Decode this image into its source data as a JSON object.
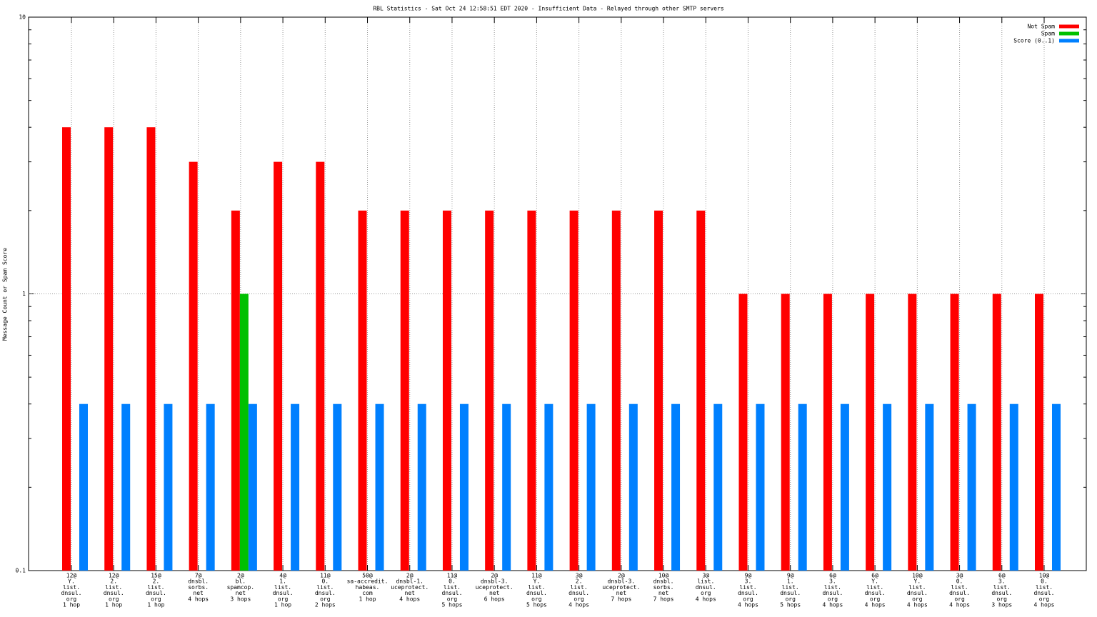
{
  "chart_data": {
    "type": "bar",
    "title": "RBL Statistics - Sat Oct 24 12:58:51 EDT 2020 - Insufficient Data - Relayed through other SMTP servers",
    "y_label": "Message Count or Spam Score",
    "log_y": true,
    "grid": true,
    "legend_position": "top-right",
    "ylim": [
      0.1,
      10
    ],
    "yticks": [
      0.1,
      1,
      10
    ],
    "categories": [
      [
        "12@",
        "Y.",
        "list.",
        "dnsul.",
        "org",
        "1 hop"
      ],
      [
        "12@",
        "2.",
        "list.",
        "dnsul.",
        "org",
        "1 hop"
      ],
      [
        "15@",
        "2.",
        "list.",
        "dnsul.",
        "org",
        "1 hop"
      ],
      [
        "7@",
        "dnsbl.",
        "sorbs.",
        "net",
        "4 hops"
      ],
      [
        "2@",
        "bl.",
        "spamcop.",
        "net",
        "3 hops"
      ],
      [
        "4@",
        "1.",
        "list.",
        "dnsul.",
        "org",
        "1 hop"
      ],
      [
        "11@",
        "0.",
        "list.",
        "dnsul.",
        "org",
        "2 hops"
      ],
      [
        "50@",
        "sa-accredit.",
        "habeas.",
        "com",
        "1 hop"
      ],
      [
        "2@",
        "dnsbl-1.",
        "uceprotect.",
        "net",
        "4 hops"
      ],
      [
        "11@",
        "0.",
        "list.",
        "dnsul.",
        "org",
        "5 hops"
      ],
      [
        "2@",
        "dnsbl-3.",
        "uceprotect.",
        "net",
        "6 hops"
      ],
      [
        "11@",
        "Y.",
        "list.",
        "dnsul.",
        "org",
        "5 hops"
      ],
      [
        "3@",
        "2.",
        "list.",
        "dnsul.",
        "org",
        "4 hops"
      ],
      [
        "2@",
        "dnsbl-3.",
        "uceprotect.",
        "net",
        "7 hops"
      ],
      [
        "10@",
        "dnsbl.",
        "sorbs.",
        "net",
        "7 hops"
      ],
      [
        "3@",
        "list.",
        "dnsul.",
        "org",
        "4 hops"
      ],
      [
        "9@",
        "3.",
        "list.",
        "dnsul.",
        "org",
        "4 hops"
      ],
      [
        "9@",
        "1.",
        "list.",
        "dnsul.",
        "org",
        "5 hops"
      ],
      [
        "6@",
        "3.",
        "list.",
        "dnsul.",
        "org",
        "4 hops"
      ],
      [
        "6@",
        "Y.",
        "list.",
        "dnsul.",
        "org",
        "4 hops"
      ],
      [
        "10@",
        "Y.",
        "list.",
        "dnsul.",
        "org",
        "4 hops"
      ],
      [
        "3@",
        "0.",
        "list.",
        "dnsul.",
        "org",
        "4 hops"
      ],
      [
        "6@",
        "3.",
        "list.",
        "dnsul.",
        "org",
        "3 hops"
      ],
      [
        "10@",
        "0.",
        "list.",
        "dnsul.",
        "org",
        "4 hops"
      ]
    ],
    "series": [
      {
        "name": "Not Spam",
        "color": "#ff0000",
        "values": [
          4,
          4,
          4,
          3,
          2,
          3,
          3,
          2,
          2,
          2,
          2,
          2,
          2,
          2,
          2,
          2,
          1,
          1,
          1,
          1,
          1,
          1,
          1,
          1
        ]
      },
      {
        "name": "Spam",
        "color": "#00c000",
        "values": [
          null,
          null,
          null,
          null,
          1,
          null,
          null,
          null,
          null,
          null,
          null,
          null,
          null,
          null,
          null,
          null,
          null,
          null,
          null,
          null,
          null,
          null,
          null,
          null
        ]
      },
      {
        "name": "Score (0..1)",
        "color": "#0080ff",
        "values": [
          0.4,
          0.4,
          0.4,
          0.4,
          0.4,
          0.4,
          0.4,
          0.4,
          0.4,
          0.4,
          0.4,
          0.4,
          0.4,
          0.4,
          0.4,
          0.4,
          0.4,
          0.4,
          0.4,
          0.4,
          0.4,
          0.4,
          0.4,
          0.4
        ]
      }
    ]
  }
}
